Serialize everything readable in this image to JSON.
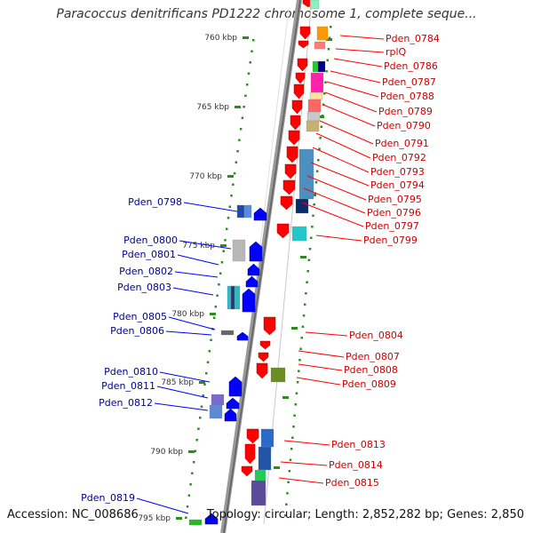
{
  "title": "Paracoccus denitrificans PD1222 chromosome 1, complete seque...",
  "footer": {
    "accession": "Accession: NC_008686",
    "summary": "Topology: circular; Length: 2,852,282 bp; Genes: 2,850"
  },
  "colors": {
    "forward_gene": "#ff0000",
    "reverse_gene": "#0000ff",
    "forward_label": "#cc0000",
    "reverse_label": "#00008b",
    "backbone": "#808080",
    "tick": "#2e8b22"
  },
  "kbp_labels": [
    "760 kbp",
    "765 kbp",
    "770 kbp",
    "775 kbp",
    "780 kbp",
    "785 kbp",
    "790 kbp",
    "795 kbp"
  ],
  "forward_labels": [
    "Pden_0784",
    "rplQ",
    "Pden_0786",
    "Pden_0787",
    "Pden_0788",
    "Pden_0789",
    "Pden_0790",
    "Pden_0791",
    "Pden_0792",
    "Pden_0793",
    "Pden_0794",
    "Pden_0795",
    "Pden_0796",
    "Pden_0797",
    "Pden_0799",
    "Pden_0804",
    "Pden_0807",
    "Pden_0808",
    "Pden_0809",
    "Pden_0813",
    "Pden_0814",
    "Pden_0815"
  ],
  "reverse_labels": [
    "Pden_0798",
    "Pden_0800",
    "Pden_0801",
    "Pden_0802",
    "Pden_0803",
    "Pden_0805",
    "Pden_0806",
    "Pden_0810",
    "Pden_0811",
    "Pden_0812",
    "Pden_0819"
  ]
}
